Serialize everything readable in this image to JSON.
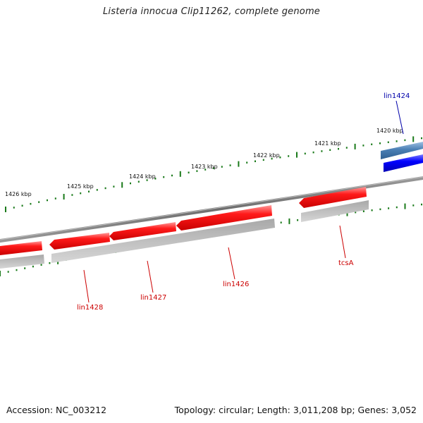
{
  "title": "Listeria innocua Clip11262, complete genome",
  "footer": {
    "accession": "Accession: NC_003212",
    "summary": "Topology: circular; Length: 3,011,208 bp; Genes: 3,052"
  },
  "ticks": [
    {
      "label": "1420 kbp"
    },
    {
      "label": "1421 kbp"
    },
    {
      "label": "1422 kbp"
    },
    {
      "label": "1423 kbp"
    },
    {
      "label": "1424 kbp"
    },
    {
      "label": "1425 kbp"
    },
    {
      "label": "1426 kbp"
    }
  ],
  "genes": [
    {
      "name": "lin1424",
      "strand": "forward",
      "color": "#0000cc"
    },
    {
      "name": "tcsA",
      "strand": "reverse",
      "color": "#cc0000"
    },
    {
      "name": "lin1426",
      "strand": "reverse",
      "color": "#cc0000"
    },
    {
      "name": "lin1427",
      "strand": "reverse",
      "color": "#cc0000"
    },
    {
      "name": "lin1428",
      "strand": "reverse",
      "color": "#cc0000"
    }
  ],
  "colors": {
    "forward_gene": "#0000ff",
    "reverse_gene": "#ff0000",
    "backbone": "#808080",
    "tick": "#1a7a1a"
  }
}
